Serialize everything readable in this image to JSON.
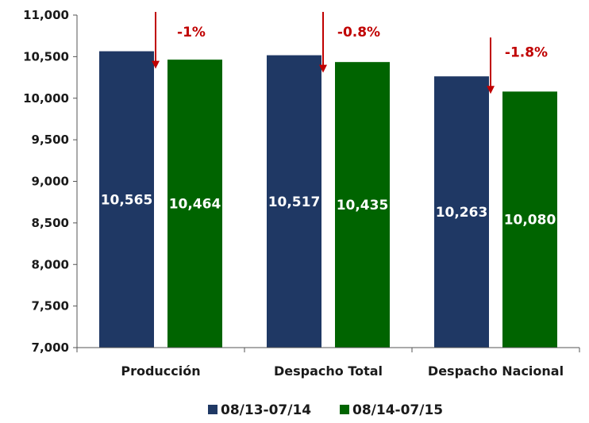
{
  "chart_data": {
    "type": "bar",
    "categories": [
      "Producción",
      "Despacho Total",
      "Despacho Nacional"
    ],
    "series": [
      {
        "name": "08/13-07/14",
        "values": [
          10565,
          10517,
          10263
        ],
        "labels": [
          "10,565",
          "10,517",
          "10,263"
        ],
        "color": "#1f3864"
      },
      {
        "name": "08/14-07/15",
        "values": [
          10464,
          10435,
          10080
        ],
        "labels": [
          "10,464",
          "10,435",
          "10,080"
        ],
        "color": "#006400"
      }
    ],
    "changes": [
      "-1%",
      "-0.8%",
      "-1.8%"
    ],
    "ylim": [
      7000,
      11000
    ],
    "yticks": [
      7000,
      7500,
      8000,
      8500,
      9000,
      9500,
      10000,
      10500,
      11000
    ],
    "ytick_labels": [
      "7,000",
      "7,500",
      "8,000",
      "8,500",
      "9,000",
      "9,500",
      "10,000",
      "10,500",
      "11,000"
    ],
    "title": "",
    "xlabel": "",
    "ylabel": "",
    "grid": false,
    "legend_position": "bottom",
    "arrow_color": "#c00000"
  }
}
